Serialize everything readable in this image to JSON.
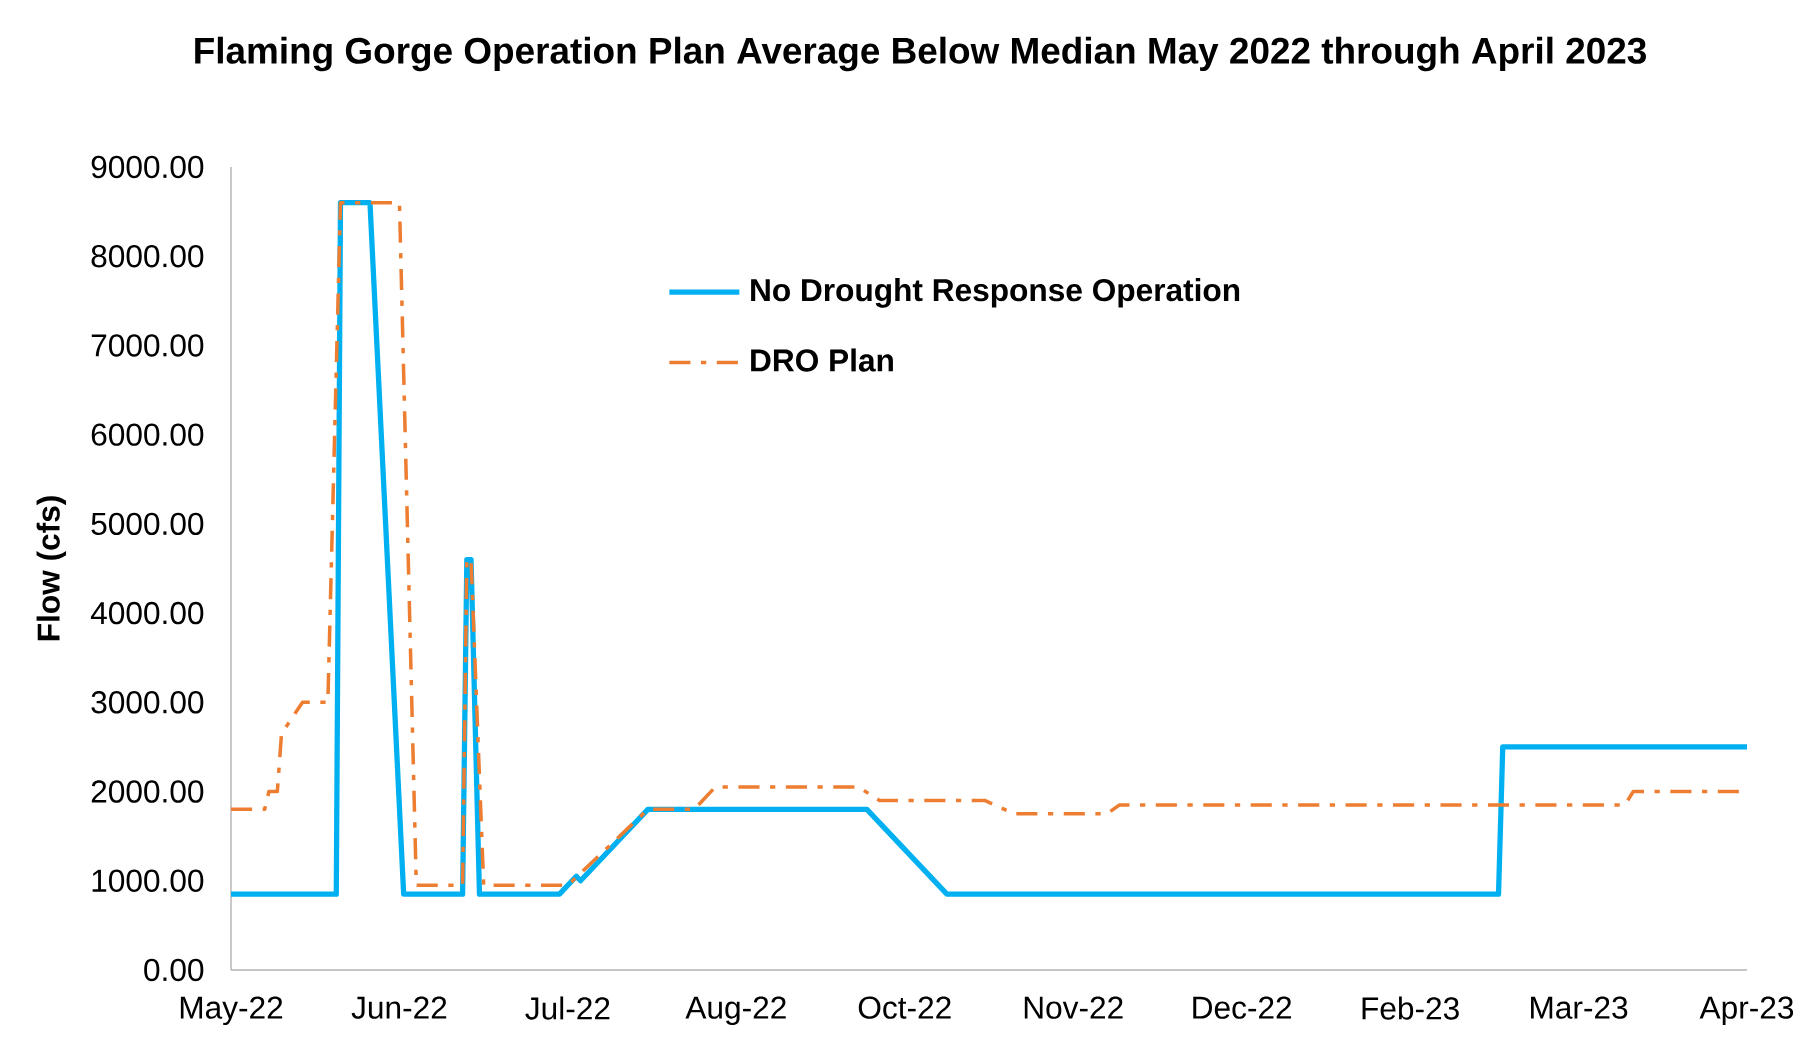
{
  "chart_data": {
    "type": "line",
    "title": "Flaming Gorge Operation Plan Average Below Median May 2022 through April 2023",
    "ylabel": "Flow (cfs)",
    "xlim": [
      "2022-05-01",
      "2023-04-26"
    ],
    "xticks": [
      {
        "value": "2022-05-01",
        "label": "May-22"
      },
      {
        "value": "2022-06-10",
        "label": "Jun-22"
      },
      {
        "value": "2022-07-20",
        "label": "Jul-22"
      },
      {
        "value": "2022-08-29",
        "label": "Aug-22"
      },
      {
        "value": "2022-10-08",
        "label": "Oct-22"
      },
      {
        "value": "2022-11-17",
        "label": "Nov-22"
      },
      {
        "value": "2022-12-27",
        "label": "Dec-22"
      },
      {
        "value": "2023-02-05",
        "label": "Feb-23"
      },
      {
        "value": "2023-03-17",
        "label": "Mar-23"
      },
      {
        "value": "2023-04-26",
        "label": "Apr-23"
      }
    ],
    "ylim": [
      0,
      9000
    ],
    "yticks": [
      {
        "value": 0,
        "label": "0.00"
      },
      {
        "value": 1000,
        "label": "1000.00"
      },
      {
        "value": 2000,
        "label": "2000.00"
      },
      {
        "value": 3000,
        "label": "3000.00"
      },
      {
        "value": 4000,
        "label": "4000.00"
      },
      {
        "value": 5000,
        "label": "5000.00"
      },
      {
        "value": 6000,
        "label": "6000.00"
      },
      {
        "value": 7000,
        "label": "7000.00"
      },
      {
        "value": 8000,
        "label": "8000.00"
      },
      {
        "value": 9000,
        "label": "9000.00"
      }
    ],
    "grid": false,
    "legend": "top",
    "marker": "none",
    "series": [
      {
        "name": "No Drought Response Operation",
        "color": "#00b0f0",
        "line_style": "solid",
        "x": [
          "2022-05-01",
          "2022-05-26",
          "2022-05-27",
          "2022-06-03",
          "2022-06-11",
          "2022-06-25",
          "2022-06-26",
          "2022-06-27",
          "2022-06-29",
          "2022-07-18",
          "2022-07-22",
          "2022-07-23",
          "2022-08-08",
          "2022-09-29",
          "2022-10-18",
          "2023-02-26",
          "2023-02-27",
          "2023-04-26"
        ],
        "values": [
          850,
          850,
          8600,
          8600,
          850,
          850,
          4600,
          4600,
          850,
          850,
          1050,
          1000,
          1800,
          1800,
          850,
          850,
          2500,
          2500
        ]
      },
      {
        "name": "DRO Plan",
        "color": "#ed7d31",
        "line_style": "dashdot",
        "x": [
          "2022-05-01",
          "2022-05-09",
          "2022-05-10",
          "2022-05-12",
          "2022-05-13",
          "2022-05-18",
          "2022-05-24",
          "2022-05-27",
          "2022-06-10",
          "2022-06-14",
          "2022-06-25",
          "2022-06-26",
          "2022-06-27",
          "2022-06-30",
          "2022-07-20",
          "2022-08-08",
          "2022-08-19",
          "2022-08-24",
          "2022-09-27",
          "2022-10-02",
          "2022-10-27",
          "2022-11-03",
          "2022-11-25",
          "2022-11-28",
          "2023-03-28",
          "2023-03-30",
          "2023-04-26"
        ],
        "values": [
          1800,
          1800,
          2000,
          2000,
          2650,
          3000,
          3000,
          8600,
          8600,
          950,
          950,
          4600,
          4600,
          950,
          950,
          1800,
          1800,
          2050,
          2050,
          1900,
          1900,
          1750,
          1750,
          1850,
          1850,
          2000,
          2000
        ]
      }
    ]
  }
}
